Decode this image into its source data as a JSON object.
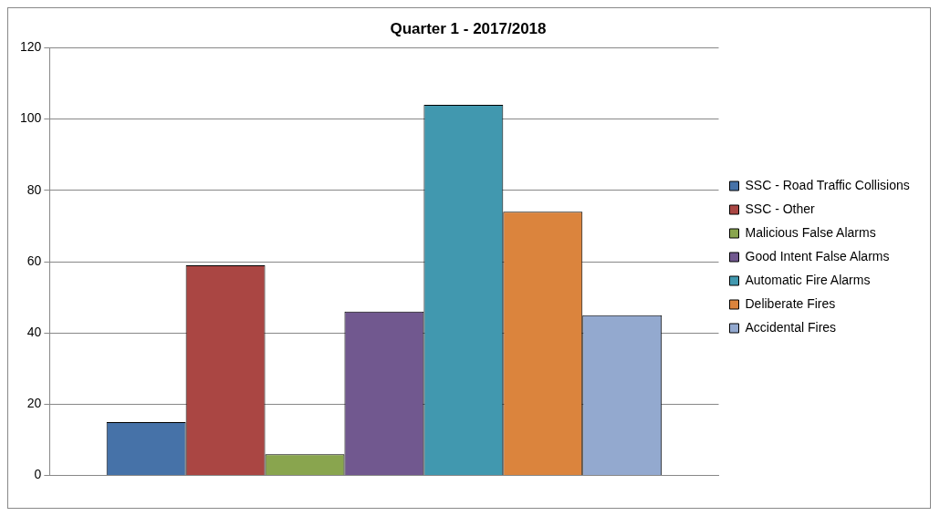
{
  "chart_data": {
    "type": "bar",
    "title": "Quarter 1 - 2017/2018",
    "categories": [
      null
    ],
    "series": [
      {
        "name": "SSC - Road Traffic Collisions",
        "color": "#4672a8",
        "values": [
          15
        ]
      },
      {
        "name": "SSC - Other",
        "color": "#aa4643",
        "values": [
          59
        ]
      },
      {
        "name": "Malicious False Alarms",
        "color": "#89a54e",
        "values": [
          6
        ]
      },
      {
        "name": "Good Intent False Alarms",
        "color": "#71588f",
        "values": [
          46
        ]
      },
      {
        "name": "Automatic Fire Alarms",
        "color": "#4198af",
        "values": [
          104
        ]
      },
      {
        "name": "Deliberate Fires",
        "color": "#db843d",
        "values": [
          74
        ]
      },
      {
        "name": "Accidental Fires",
        "color": "#93a9cf",
        "values": [
          45
        ]
      }
    ],
    "ylim": [
      0,
      120
    ],
    "yticks": [
      0,
      20,
      40,
      60,
      80,
      100,
      120
    ],
    "grid": "y",
    "legend": "right"
  }
}
